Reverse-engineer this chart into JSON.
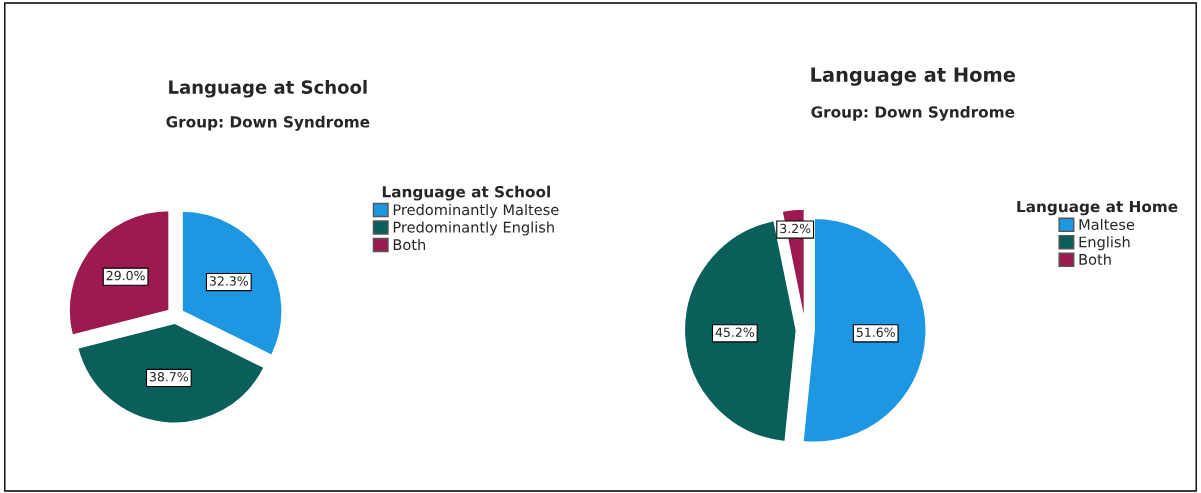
{
  "chart_data": [
    {
      "type": "pie",
      "title": "Language at School",
      "subtitle": "Group: Down Syndrome",
      "legend_title": "Language at School",
      "legend": "right",
      "categories": [
        "Predominantly Maltese",
        "Predominantly English",
        "Both"
      ],
      "values": [
        32.3,
        38.7,
        29.0
      ],
      "value_labels": [
        "32.3%",
        "38.7%",
        "29.0%"
      ],
      "colors": [
        "#1e97e3",
        "#0b5f5b",
        "#9c1a4f"
      ]
    },
    {
      "type": "pie",
      "title": "Language at Home",
      "subtitle": "Group: Down Syndrome",
      "legend_title": "Language at Home",
      "legend": "right",
      "categories": [
        "Maltese",
        "English",
        "Both"
      ],
      "values": [
        51.6,
        45.2,
        3.2
      ],
      "value_labels": [
        "51.6%",
        "45.2%",
        "3.2%"
      ],
      "colors": [
        "#1e97e3",
        "#0b5f5b",
        "#9c1a4f"
      ]
    }
  ]
}
